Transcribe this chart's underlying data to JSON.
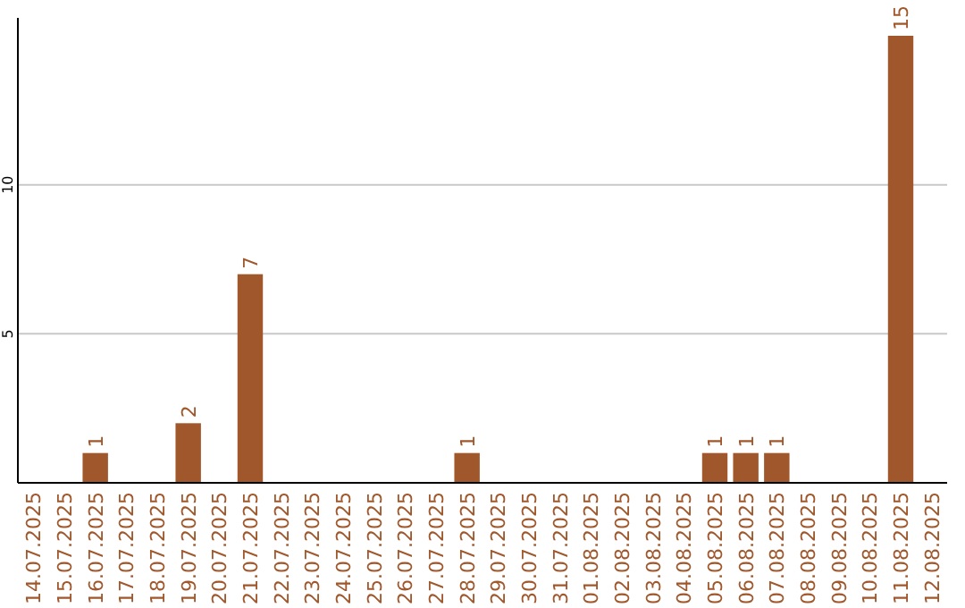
{
  "chart_data": {
    "type": "bar",
    "categories": [
      "14.07.2025",
      "15.07.2025",
      "16.07.2025",
      "17.07.2025",
      "18.07.2025",
      "19.07.2025",
      "20.07.2025",
      "21.07.2025",
      "22.07.2025",
      "23.07.2025",
      "24.07.2025",
      "25.07.2025",
      "26.07.2025",
      "27.07.2025",
      "28.07.2025",
      "29.07.2025",
      "30.07.2025",
      "31.07.2025",
      "01.08.2025",
      "02.08.2025",
      "03.08.2025",
      "04.08.2025",
      "05.08.2025",
      "06.08.2025",
      "07.08.2025",
      "08.08.2025",
      "09.08.2025",
      "10.08.2025",
      "11.08.2025",
      "12.08.2025"
    ],
    "values": [
      0,
      0,
      1,
      0,
      0,
      2,
      0,
      7,
      0,
      0,
      0,
      0,
      0,
      0,
      1,
      0,
      0,
      0,
      0,
      0,
      0,
      0,
      1,
      1,
      1,
      0,
      0,
      0,
      15,
      0
    ],
    "value_labels": [
      null,
      null,
      "1",
      null,
      null,
      "2",
      null,
      "7",
      null,
      null,
      null,
      null,
      null,
      null,
      "1",
      null,
      null,
      null,
      null,
      null,
      null,
      null,
      "1",
      "1",
      "1",
      null,
      null,
      null,
      "15",
      null
    ],
    "color": "#a0572b",
    "ylim": [
      0,
      15.6
    ],
    "yticks": [
      5,
      10
    ],
    "grid": "y"
  }
}
